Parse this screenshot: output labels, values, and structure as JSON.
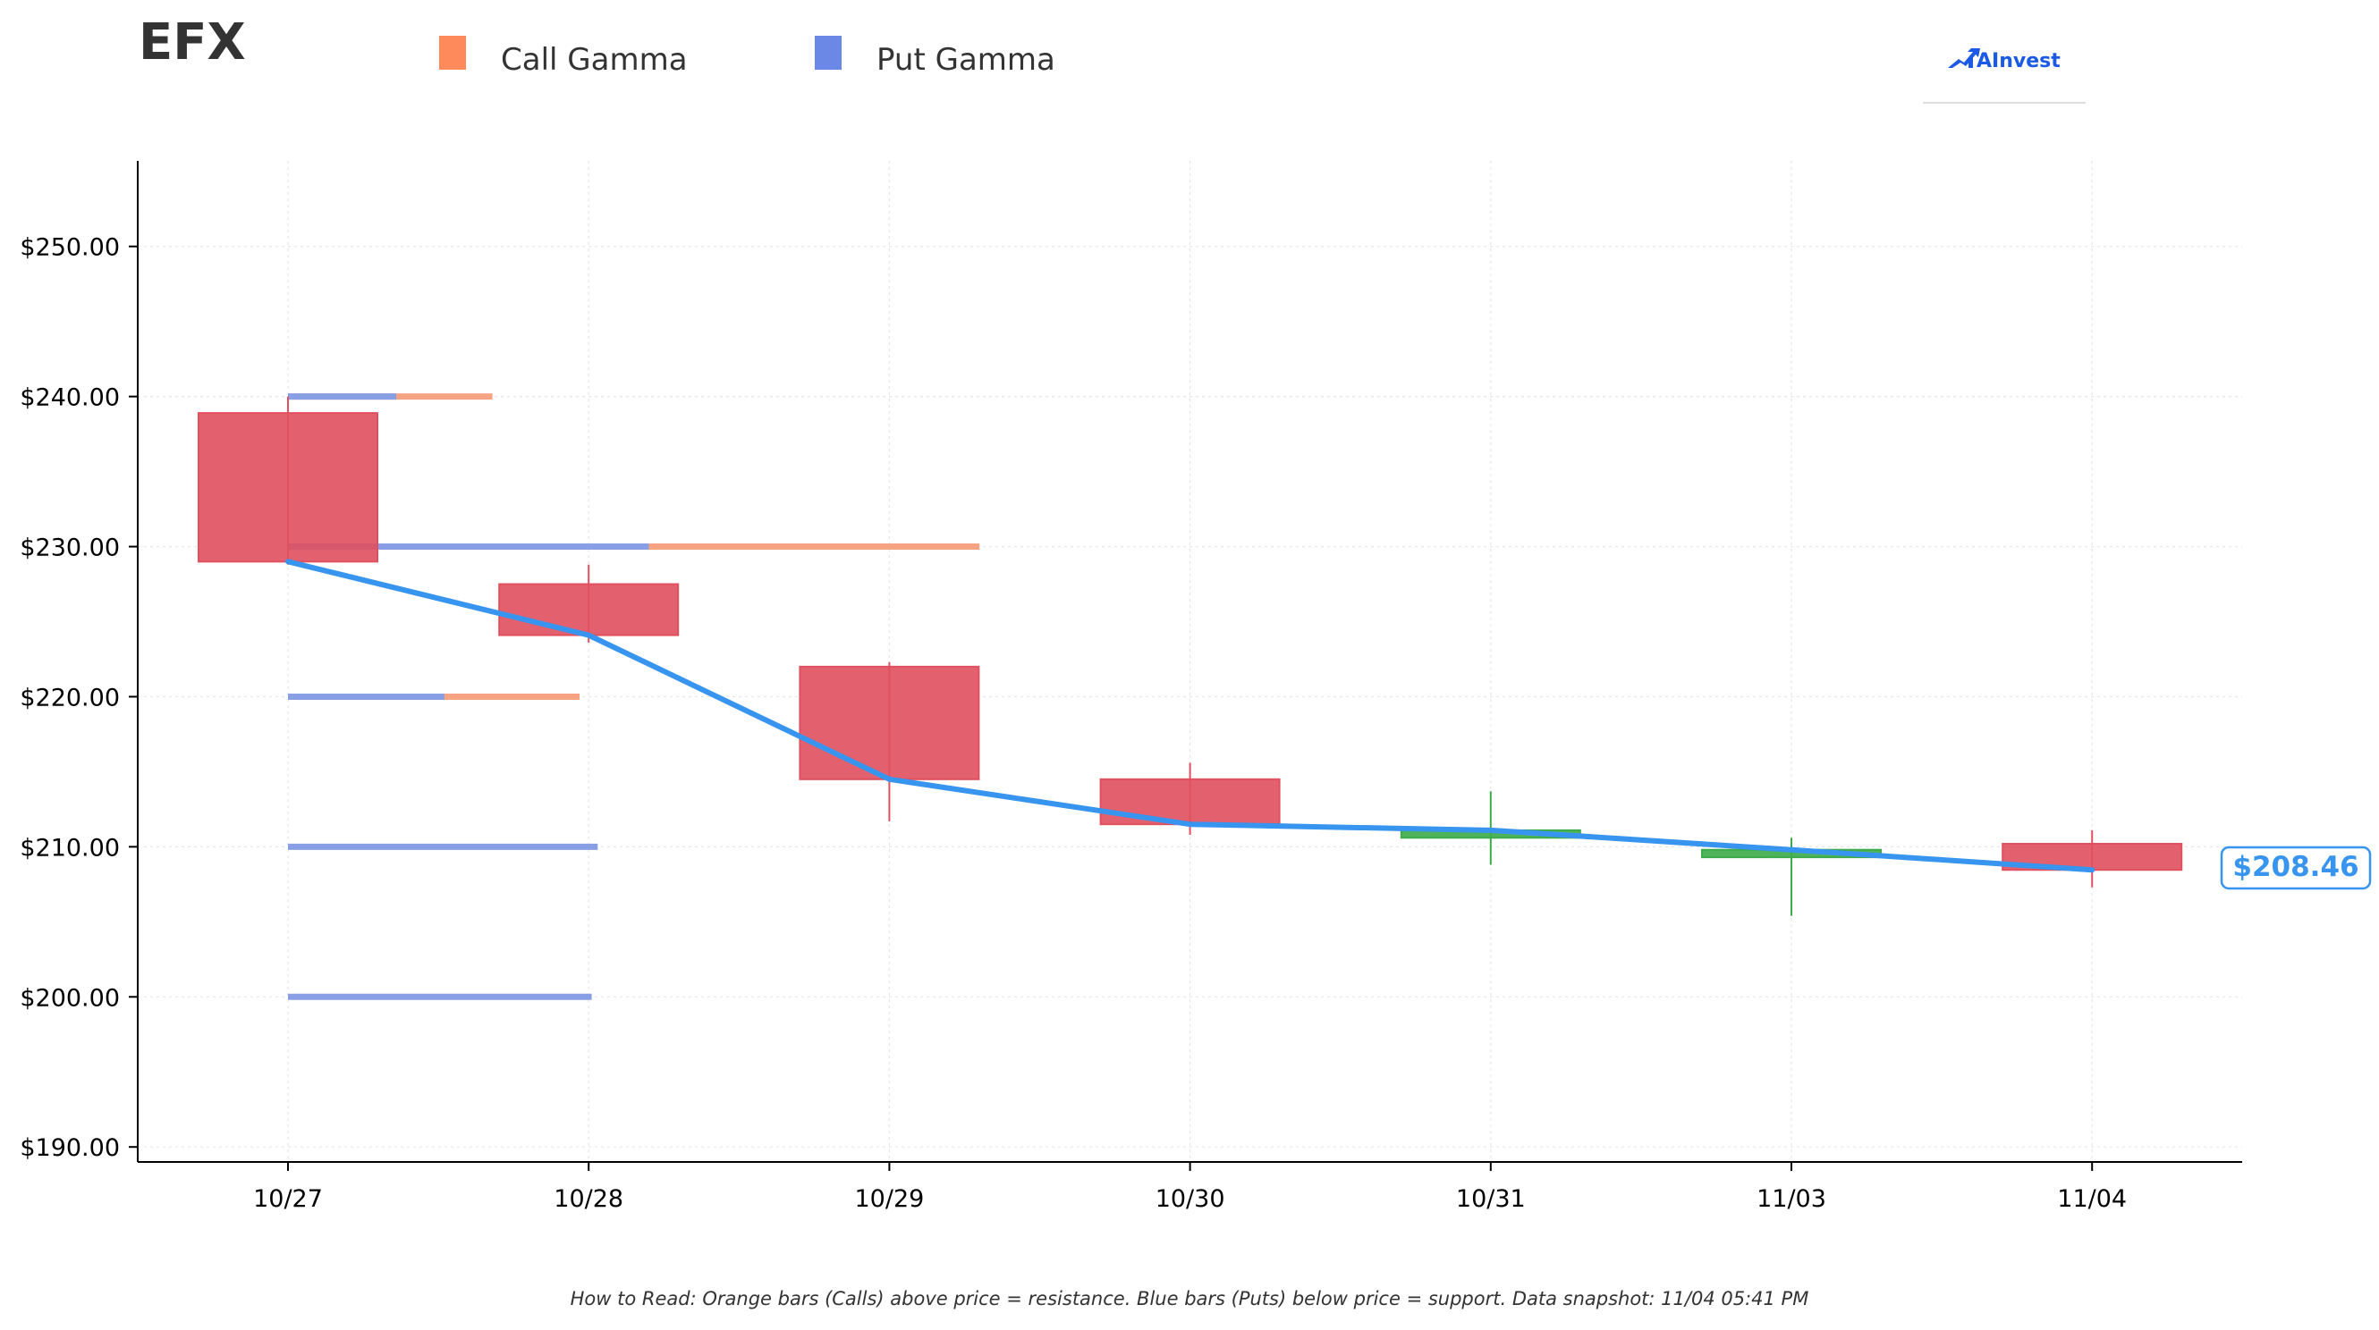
{
  "ticker": "EFX",
  "legend": [
    {
      "label": "Call Gamma",
      "color": "#fe8a5b"
    },
    {
      "label": "Put Gamma",
      "color": "#6b88e6"
    }
  ],
  "logo": {
    "text": "AInvest",
    "color": "#1a5ae6"
  },
  "current_price_label": "$208.46",
  "footnote": "How to Read: Orange bars (Calls) above price = resistance. Blue bars (Puts) below price = support. Data snapshot: 11/04 05:41 PM",
  "colors": {
    "up": "#3cab4a",
    "down": "#e0505e",
    "price_line": "#3794ef",
    "call": "#f6a383",
    "put": "#889fe6",
    "axis": "#000000",
    "grid": "#e6e6e6"
  },
  "chart_data": {
    "type": "candlestick",
    "title": "EFX",
    "categories": [
      "10/27",
      "10/28",
      "10/29",
      "10/30",
      "10/31",
      "11/03",
      "11/04"
    ],
    "ylim": [
      189,
      255.7
    ],
    "yticks": [
      190,
      200,
      210,
      220,
      230,
      240,
      250
    ],
    "ytick_labels": [
      "$190.00",
      "$200.00",
      "$210.00",
      "$220.00",
      "$230.00",
      "$240.00",
      "$250.00"
    ],
    "grid": true,
    "legend_position": "top",
    "candles": [
      {
        "date": "10/27",
        "open": 238.9,
        "close": 229.0,
        "high": 240.0,
        "low": 228.8
      },
      {
        "date": "10/28",
        "open": 227.5,
        "close": 224.1,
        "high": 228.8,
        "low": 223.6
      },
      {
        "date": "10/29",
        "open": 222.0,
        "close": 214.5,
        "high": 222.3,
        "low": 211.7
      },
      {
        "date": "10/30",
        "open": 214.5,
        "close": 211.5,
        "high": 215.6,
        "low": 210.8
      },
      {
        "date": "10/31",
        "open": 210.6,
        "close": 211.1,
        "high": 213.7,
        "low": 208.8
      },
      {
        "date": "11/03",
        "open": 209.3,
        "close": 209.8,
        "high": 210.6,
        "low": 205.4
      },
      {
        "date": "11/04",
        "open": 210.2,
        "close": 208.46,
        "high": 211.1,
        "low": 207.3
      }
    ],
    "price_line": {
      "x": [
        "10/27",
        "10/28",
        "10/29",
        "10/30",
        "10/31",
        "11/03",
        "11/04"
      ],
      "y": [
        229.0,
        224.1,
        214.5,
        211.5,
        211.1,
        209.8,
        208.46
      ]
    },
    "gamma_levels": [
      {
        "strike": 240,
        "put_extent": 0.36,
        "call_extent": 0.68
      },
      {
        "strike": 230,
        "put_extent": 1.2,
        "call_extent": 2.3
      },
      {
        "strike": 220,
        "put_extent": 0.52,
        "call_extent": 0.97
      },
      {
        "strike": 210,
        "put_extent": 1.03,
        "call_extent": 0
      },
      {
        "strike": 200,
        "put_extent": 1.01,
        "call_extent": 0
      }
    ]
  }
}
